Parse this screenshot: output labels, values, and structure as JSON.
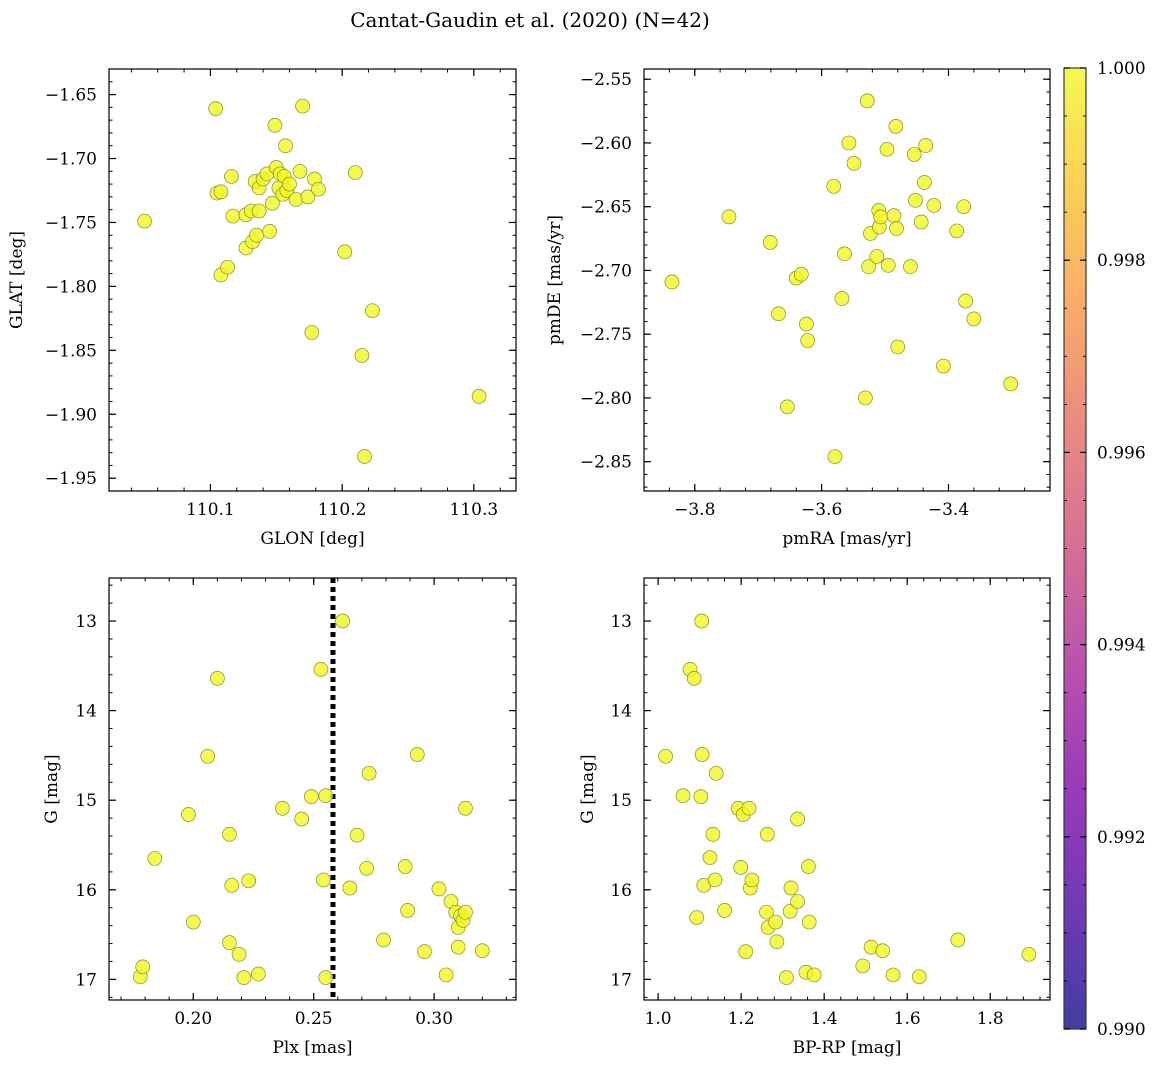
{
  "title": "Cantat-Gaudin et al. (2020) (N=42)",
  "colorbar": {
    "range": [
      0.99,
      1.0
    ],
    "tick_labels": [
      "1.000",
      "0.998",
      "0.996",
      "0.994",
      "0.992",
      "0.990"
    ],
    "colormap": "plasma"
  },
  "point_color": "#f0f921",
  "point_edge": "#8a8a30",
  "chart_data": [
    {
      "type": "scatter",
      "xlabel": "GLON [deg]",
      "ylabel": "GLAT [deg]",
      "xlim": [
        110.023,
        110.332
      ],
      "ylim": [
        -1.96,
        -1.63
      ],
      "xticks": [
        {
          "v": 110.1,
          "label": "110.1"
        },
        {
          "v": 110.2,
          "label": "110.2"
        },
        {
          "v": 110.3,
          "label": "110.3"
        }
      ],
      "yticks": [
        {
          "v": -1.65,
          "label": "−1.65"
        },
        {
          "v": -1.7,
          "label": "−1.70"
        },
        {
          "v": -1.75,
          "label": "−1.75"
        },
        {
          "v": -1.8,
          "label": "−1.80"
        },
        {
          "v": -1.85,
          "label": "−1.85"
        },
        {
          "v": -1.9,
          "label": "−1.90"
        },
        {
          "v": -1.95,
          "label": "−1.95"
        }
      ],
      "points": [
        [
          110.05,
          -1.749
        ],
        [
          110.104,
          -1.661
        ],
        [
          110.105,
          -1.727
        ],
        [
          110.108,
          -1.726
        ],
        [
          110.108,
          -1.791
        ],
        [
          110.113,
          -1.785
        ],
        [
          110.116,
          -1.714
        ],
        [
          110.117,
          -1.745
        ],
        [
          110.127,
          -1.744
        ],
        [
          110.127,
          -1.77
        ],
        [
          110.131,
          -1.741
        ],
        [
          110.132,
          -1.765
        ],
        [
          110.134,
          -1.718
        ],
        [
          110.135,
          -1.76
        ],
        [
          110.137,
          -1.723
        ],
        [
          110.137,
          -1.741
        ],
        [
          110.14,
          -1.716
        ],
        [
          110.143,
          -1.712
        ],
        [
          110.145,
          -1.757
        ],
        [
          110.147,
          -1.735
        ],
        [
          110.149,
          -1.674
        ],
        [
          110.15,
          -1.707
        ],
        [
          110.152,
          -1.723
        ],
        [
          110.153,
          -1.712
        ],
        [
          110.155,
          -1.728
        ],
        [
          110.156,
          -1.714
        ],
        [
          110.157,
          -1.69
        ],
        [
          110.158,
          -1.725
        ],
        [
          110.16,
          -1.72
        ],
        [
          110.165,
          -1.732
        ],
        [
          110.168,
          -1.71
        ],
        [
          110.17,
          -1.659
        ],
        [
          110.174,
          -1.73
        ],
        [
          110.177,
          -1.836
        ],
        [
          110.179,
          -1.716
        ],
        [
          110.182,
          -1.724
        ],
        [
          110.202,
          -1.773
        ],
        [
          110.21,
          -1.711
        ],
        [
          110.215,
          -1.854
        ],
        [
          110.217,
          -1.933
        ],
        [
          110.223,
          -1.819
        ],
        [
          110.304,
          -1.886
        ]
      ]
    },
    {
      "type": "scatter",
      "xlabel": "pmRA [mas/yr]",
      "ylabel": "pmDE [mas/yr]",
      "xlim": [
        -3.88,
        -3.24
      ],
      "ylim": [
        -2.873,
        -2.542
      ],
      "xticks": [
        {
          "v": -3.8,
          "label": "−3.8"
        },
        {
          "v": -3.6,
          "label": "−3.6"
        },
        {
          "v": -3.4,
          "label": "−3.4"
        }
      ],
      "yticks": [
        {
          "v": -2.55,
          "label": "−2.55"
        },
        {
          "v": -2.6,
          "label": "−2.60"
        },
        {
          "v": -2.65,
          "label": "−2.65"
        },
        {
          "v": -2.7,
          "label": "−2.70"
        },
        {
          "v": -2.75,
          "label": "−2.75"
        },
        {
          "v": -2.8,
          "label": "−2.80"
        },
        {
          "v": -2.85,
          "label": "−2.85"
        }
      ],
      "points": [
        [
          -3.836,
          -2.709
        ],
        [
          -3.746,
          -2.658
        ],
        [
          -3.681,
          -2.678
        ],
        [
          -3.668,
          -2.734
        ],
        [
          -3.654,
          -2.807
        ],
        [
          -3.64,
          -2.706
        ],
        [
          -3.632,
          -2.703
        ],
        [
          -3.624,
          -2.742
        ],
        [
          -3.622,
          -2.755
        ],
        [
          -3.581,
          -2.634
        ],
        [
          -3.579,
          -2.846
        ],
        [
          -3.568,
          -2.722
        ],
        [
          -3.564,
          -2.687
        ],
        [
          -3.557,
          -2.6
        ],
        [
          -3.549,
          -2.616
        ],
        [
          -3.531,
          -2.8
        ],
        [
          -3.528,
          -2.567
        ],
        [
          -3.526,
          -2.697
        ],
        [
          -3.523,
          -2.671
        ],
        [
          -3.513,
          -2.689
        ],
        [
          -3.51,
          -2.653
        ],
        [
          -3.509,
          -2.666
        ],
        [
          -3.507,
          -2.658
        ],
        [
          -3.497,
          -2.605
        ],
        [
          -3.495,
          -2.696
        ],
        [
          -3.486,
          -2.657
        ],
        [
          -3.483,
          -2.587
        ],
        [
          -3.482,
          -2.667
        ],
        [
          -3.48,
          -2.76
        ],
        [
          -3.46,
          -2.697
        ],
        [
          -3.454,
          -2.609
        ],
        [
          -3.452,
          -2.645
        ],
        [
          -3.443,
          -2.662
        ],
        [
          -3.438,
          -2.631
        ],
        [
          -3.436,
          -2.602
        ],
        [
          -3.423,
          -2.649
        ],
        [
          -3.408,
          -2.775
        ],
        [
          -3.387,
          -2.669
        ],
        [
          -3.376,
          -2.65
        ],
        [
          -3.373,
          -2.724
        ],
        [
          -3.36,
          -2.738
        ],
        [
          -3.302,
          -2.789
        ]
      ]
    },
    {
      "type": "scatter",
      "xlabel": "Plx [mas]",
      "ylabel": "G [mag]",
      "xlim": [
        0.165,
        0.334
      ],
      "ylim": [
        17.23,
        12.52
      ],
      "vline": 0.258,
      "xticks": [
        {
          "v": 0.2,
          "label": "0.20"
        },
        {
          "v": 0.25,
          "label": "0.25"
        },
        {
          "v": 0.3,
          "label": "0.30"
        }
      ],
      "yticks": [
        {
          "v": 13,
          "label": "13"
        },
        {
          "v": 14,
          "label": "14"
        },
        {
          "v": 15,
          "label": "15"
        },
        {
          "v": 16,
          "label": "16"
        },
        {
          "v": 17,
          "label": "17"
        }
      ],
      "points": [
        [
          0.178,
          16.97
        ],
        [
          0.179,
          16.86
        ],
        [
          0.184,
          15.65
        ],
        [
          0.198,
          15.16
        ],
        [
          0.2,
          16.36
        ],
        [
          0.206,
          14.51
        ],
        [
          0.21,
          13.64
        ],
        [
          0.215,
          16.59
        ],
        [
          0.215,
          15.38
        ],
        [
          0.216,
          15.95
        ],
        [
          0.219,
          16.72
        ],
        [
          0.221,
          16.98
        ],
        [
          0.223,
          15.9
        ],
        [
          0.227,
          16.94
        ],
        [
          0.237,
          15.09
        ],
        [
          0.245,
          15.21
        ],
        [
          0.249,
          14.96
        ],
        [
          0.253,
          13.54
        ],
        [
          0.254,
          15.89
        ],
        [
          0.255,
          14.95
        ],
        [
          0.255,
          16.98
        ],
        [
          0.262,
          13.0
        ],
        [
          0.265,
          15.98
        ],
        [
          0.268,
          15.39
        ],
        [
          0.272,
          15.76
        ],
        [
          0.273,
          14.7
        ],
        [
          0.279,
          16.56
        ],
        [
          0.288,
          15.74
        ],
        [
          0.289,
          16.23
        ],
        [
          0.293,
          14.49
        ],
        [
          0.296,
          16.69
        ],
        [
          0.302,
          15.99
        ],
        [
          0.305,
          16.95
        ],
        [
          0.307,
          16.13
        ],
        [
          0.309,
          16.25
        ],
        [
          0.31,
          16.42
        ],
        [
          0.31,
          16.64
        ],
        [
          0.311,
          16.29
        ],
        [
          0.312,
          16.34
        ],
        [
          0.313,
          15.09
        ],
        [
          0.313,
          16.25
        ],
        [
          0.32,
          16.68
        ]
      ]
    },
    {
      "type": "scatter",
      "xlabel": "BP-RP [mag]",
      "ylabel": "G [mag]",
      "xlim": [
        0.966,
        1.944
      ],
      "ylim": [
        17.23,
        12.52
      ],
      "xticks": [
        {
          "v": 1.0,
          "label": "1.0"
        },
        {
          "v": 1.2,
          "label": "1.2"
        },
        {
          "v": 1.4,
          "label": "1.4"
        },
        {
          "v": 1.6,
          "label": "1.6"
        },
        {
          "v": 1.8,
          "label": "1.8"
        }
      ],
      "yticks": [
        {
          "v": 13,
          "label": "13"
        },
        {
          "v": 14,
          "label": "14"
        },
        {
          "v": 15,
          "label": "15"
        },
        {
          "v": 16,
          "label": "16"
        },
        {
          "v": 17,
          "label": "17"
        }
      ],
      "points": [
        [
          1.018,
          14.51
        ],
        [
          1.06,
          14.95
        ],
        [
          1.077,
          13.54
        ],
        [
          1.087,
          13.64
        ],
        [
          1.093,
          16.31
        ],
        [
          1.103,
          14.96
        ],
        [
          1.105,
          13.0
        ],
        [
          1.106,
          14.49
        ],
        [
          1.11,
          15.95
        ],
        [
          1.125,
          15.64
        ],
        [
          1.132,
          15.38
        ],
        [
          1.137,
          15.89
        ],
        [
          1.14,
          14.7
        ],
        [
          1.16,
          16.23
        ],
        [
          1.193,
          15.09
        ],
        [
          1.199,
          15.75
        ],
        [
          1.205,
          15.16
        ],
        [
          1.211,
          16.69
        ],
        [
          1.219,
          15.09
        ],
        [
          1.222,
          15.98
        ],
        [
          1.226,
          15.89
        ],
        [
          1.261,
          16.25
        ],
        [
          1.263,
          15.38
        ],
        [
          1.265,
          16.42
        ],
        [
          1.283,
          16.36
        ],
        [
          1.286,
          16.58
        ],
        [
          1.309,
          16.98
        ],
        [
          1.318,
          16.24
        ],
        [
          1.32,
          15.98
        ],
        [
          1.336,
          15.21
        ],
        [
          1.336,
          16.13
        ],
        [
          1.356,
          16.92
        ],
        [
          1.362,
          15.74
        ],
        [
          1.364,
          16.36
        ],
        [
          1.376,
          16.95
        ],
        [
          1.493,
          16.85
        ],
        [
          1.513,
          16.64
        ],
        [
          1.541,
          16.68
        ],
        [
          1.566,
          16.95
        ],
        [
          1.629,
          16.97
        ],
        [
          1.722,
          16.56
        ],
        [
          1.893,
          16.72
        ]
      ]
    }
  ]
}
